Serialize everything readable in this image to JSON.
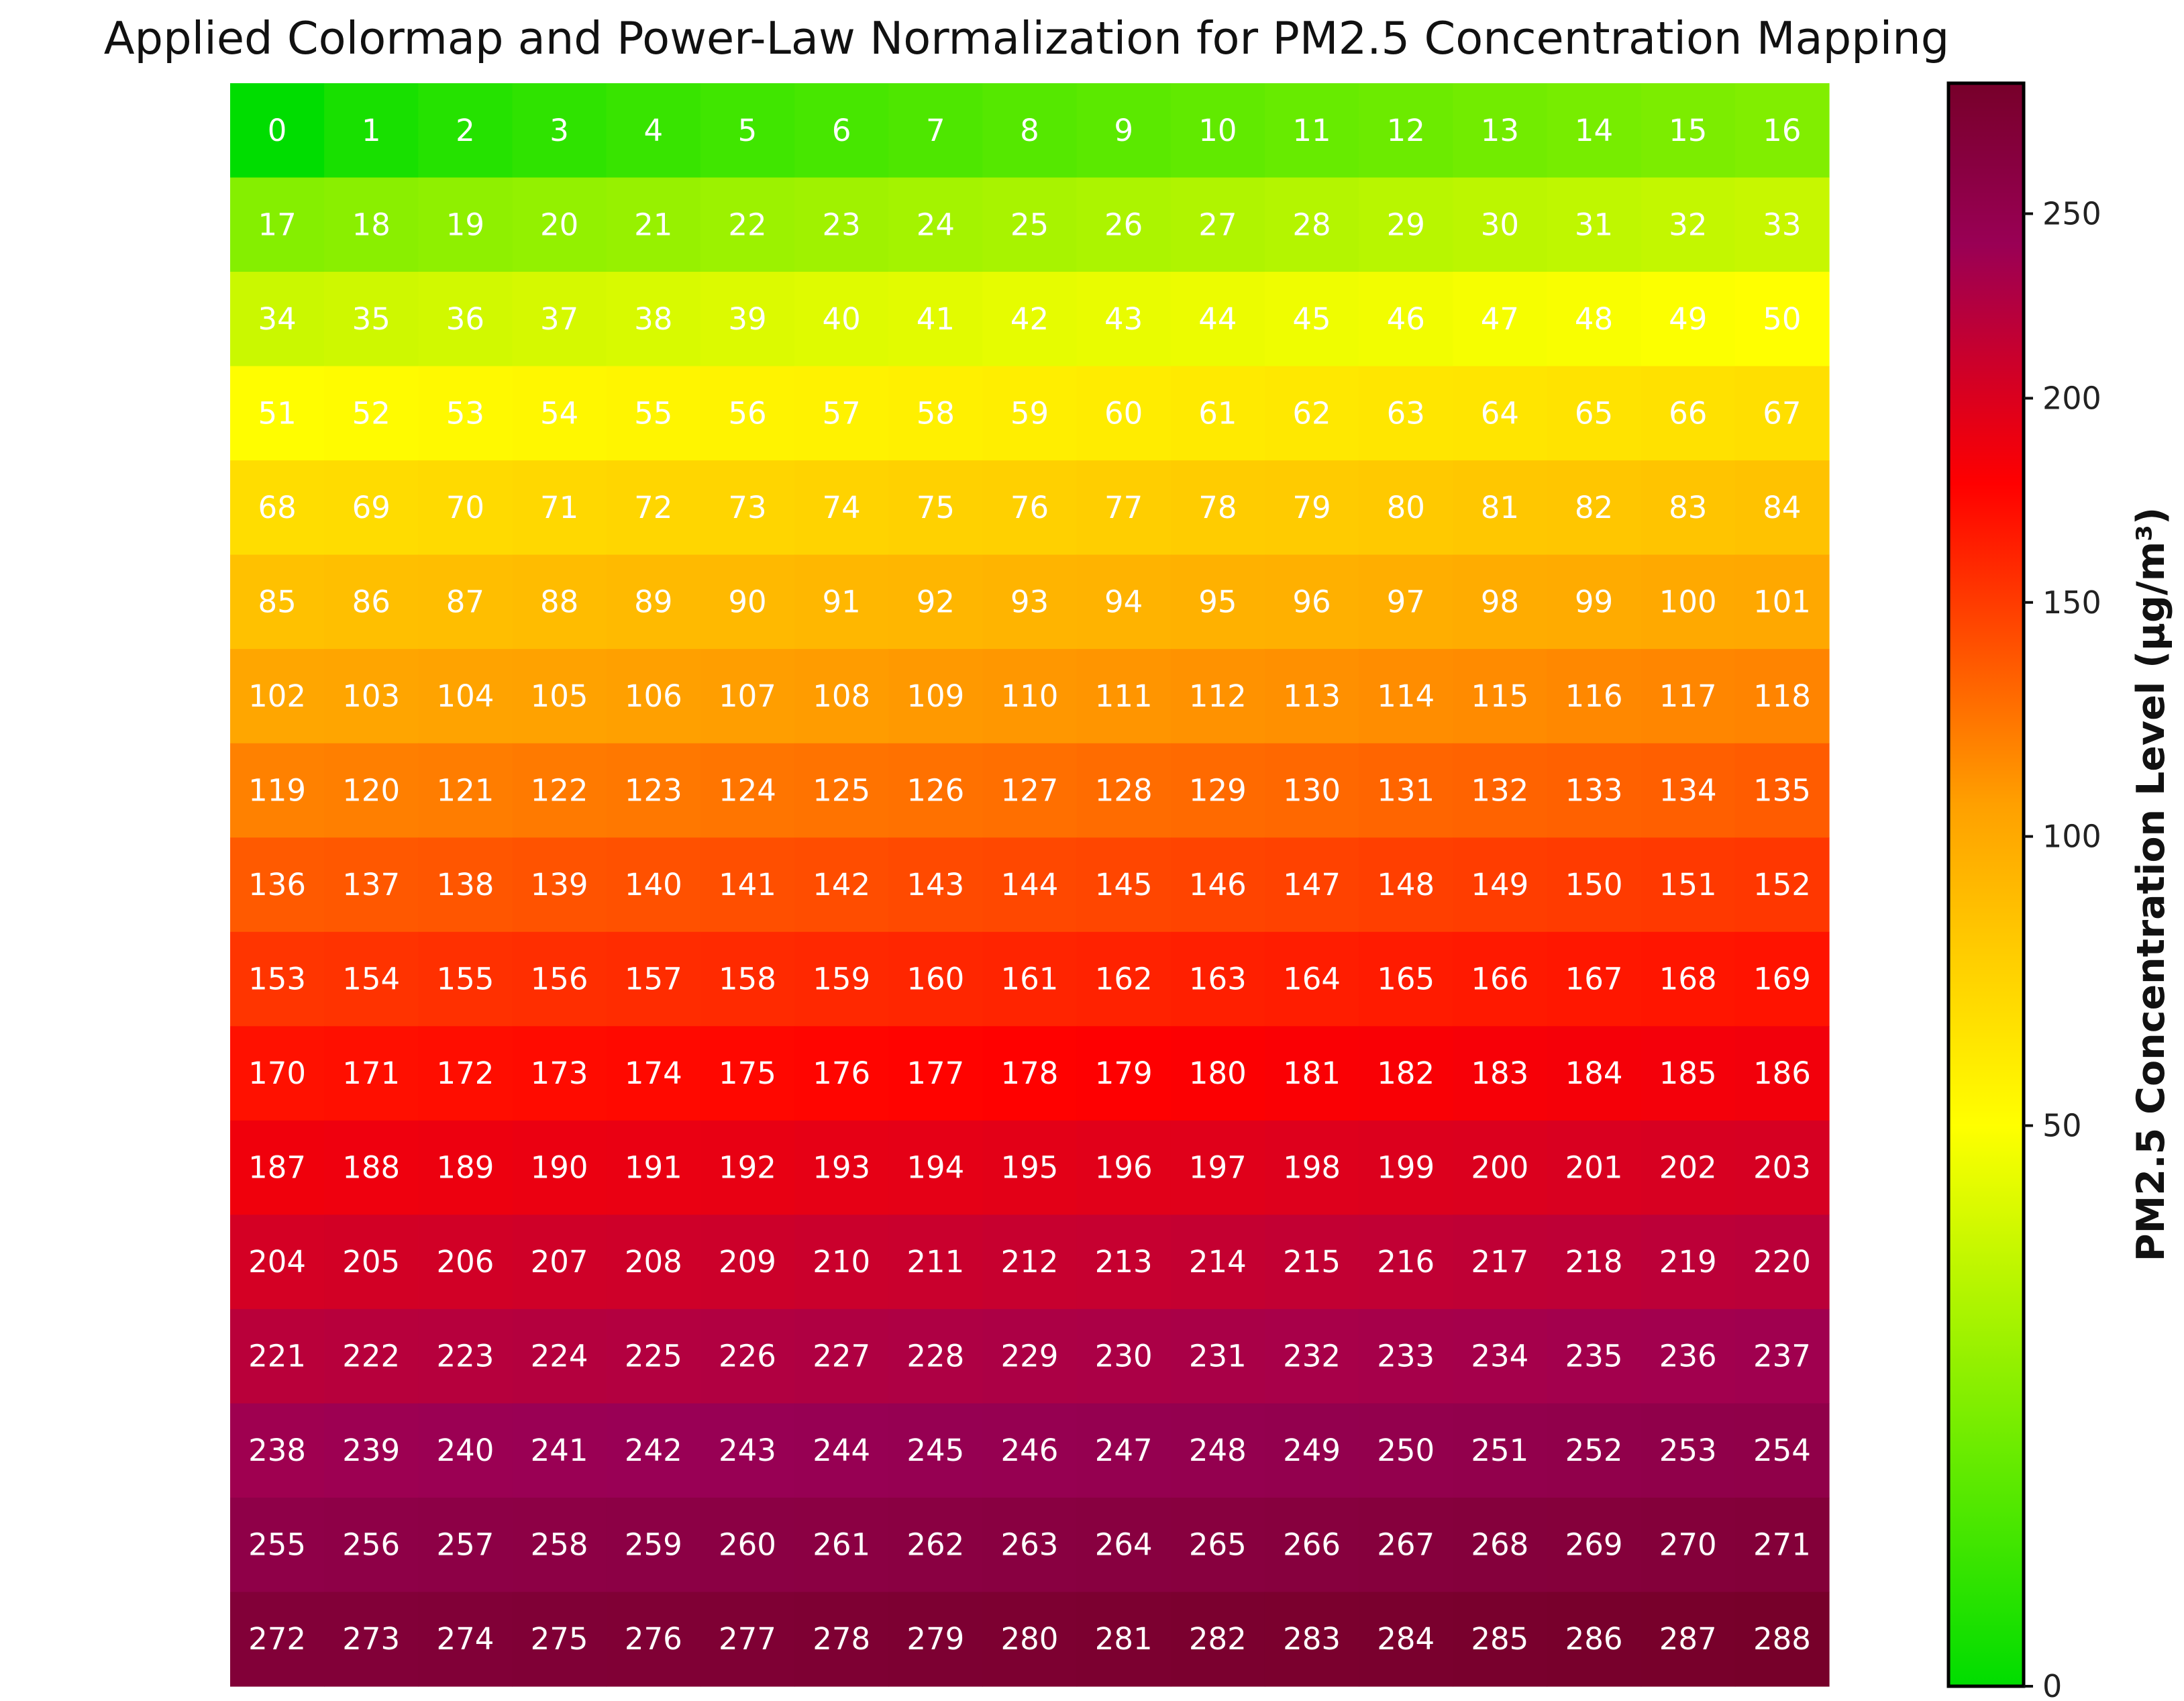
{
  "chart_data": {
    "type": "heatmap",
    "title": "Applied Colormap and Power-Law Normalization for PM2.5 Concentration Mapping",
    "rows": 17,
    "cols": 17,
    "values": [
      [
        0,
        1,
        2,
        3,
        4,
        5,
        6,
        7,
        8,
        9,
        10,
        11,
        12,
        13,
        14,
        15,
        16
      ],
      [
        17,
        18,
        19,
        20,
        21,
        22,
        23,
        24,
        25,
        26,
        27,
        28,
        29,
        30,
        31,
        32,
        33
      ],
      [
        34,
        35,
        36,
        37,
        38,
        39,
        40,
        41,
        42,
        43,
        44,
        45,
        46,
        47,
        48,
        49,
        50
      ],
      [
        51,
        52,
        53,
        54,
        55,
        56,
        57,
        58,
        59,
        60,
        61,
        62,
        63,
        64,
        65,
        66,
        67
      ],
      [
        68,
        69,
        70,
        71,
        72,
        73,
        74,
        75,
        76,
        77,
        78,
        79,
        80,
        81,
        82,
        83,
        84
      ],
      [
        85,
        86,
        87,
        88,
        89,
        90,
        91,
        92,
        93,
        94,
        95,
        96,
        97,
        98,
        99,
        100,
        101
      ],
      [
        102,
        103,
        104,
        105,
        106,
        107,
        108,
        109,
        110,
        111,
        112,
        113,
        114,
        115,
        116,
        117,
        118
      ],
      [
        119,
        120,
        121,
        122,
        123,
        124,
        125,
        126,
        127,
        128,
        129,
        130,
        131,
        132,
        133,
        134,
        135
      ],
      [
        136,
        137,
        138,
        139,
        140,
        141,
        142,
        143,
        144,
        145,
        146,
        147,
        148,
        149,
        150,
        151,
        152
      ],
      [
        153,
        154,
        155,
        156,
        157,
        158,
        159,
        160,
        161,
        162,
        163,
        164,
        165,
        166,
        167,
        168,
        169
      ],
      [
        170,
        171,
        172,
        173,
        174,
        175,
        176,
        177,
        178,
        179,
        180,
        181,
        182,
        183,
        184,
        185,
        186
      ],
      [
        187,
        188,
        189,
        190,
        191,
        192,
        193,
        194,
        195,
        196,
        197,
        198,
        199,
        200,
        201,
        202,
        203
      ],
      [
        204,
        205,
        206,
        207,
        208,
        209,
        210,
        211,
        212,
        213,
        214,
        215,
        216,
        217,
        218,
        219,
        220
      ],
      [
        221,
        222,
        223,
        224,
        225,
        226,
        227,
        228,
        229,
        230,
        231,
        232,
        233,
        234,
        235,
        236,
        237
      ],
      [
        238,
        239,
        240,
        241,
        242,
        243,
        244,
        245,
        246,
        247,
        248,
        249,
        250,
        251,
        252,
        253,
        254
      ],
      [
        255,
        256,
        257,
        258,
        259,
        260,
        261,
        262,
        263,
        264,
        265,
        266,
        267,
        268,
        269,
        270,
        271
      ],
      [
        272,
        273,
        274,
        275,
        276,
        277,
        278,
        279,
        280,
        281,
        282,
        283,
        284,
        285,
        286,
        287,
        288
      ]
    ],
    "colorbar": {
      "label": "PM2.5 Concentration Level (μg/m³)",
      "ticks": [
        0,
        50,
        100,
        150,
        200,
        250
      ],
      "vmin": 0,
      "vmax": 288,
      "norm": "power",
      "gamma": 0.6,
      "colors": [
        "#00dd00",
        "#ffff00",
        "#ffa000",
        "#ff0000",
        "#990055",
        "#77002a"
      ],
      "color_stops": [
        0,
        0.35,
        0.55,
        0.75,
        0.9,
        1.0
      ]
    },
    "grid": false
  }
}
